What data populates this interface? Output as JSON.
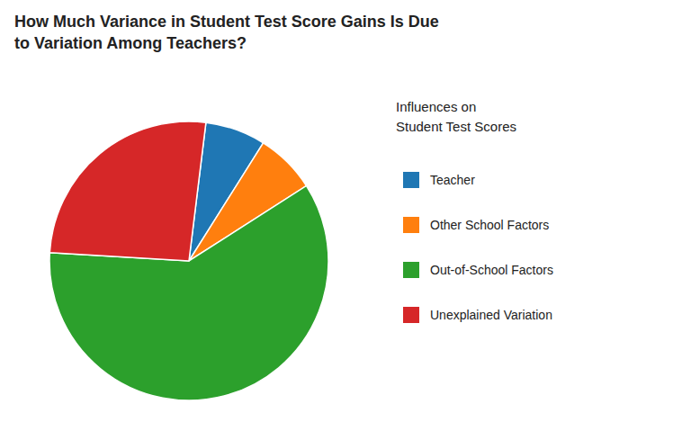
{
  "chart_data": {
    "type": "pie",
    "title": "How Much Variance in Student Test Score Gains Is Due\nto Variation Among Teachers?",
    "legend_title": "Influences on\nStudent Test Scores",
    "categories": [
      "Teacher",
      "Other School Factors",
      "Out-of-School Factors",
      "Unexplained Variation"
    ],
    "values": [
      7,
      7,
      60,
      26
    ],
    "legend": "right"
  }
}
